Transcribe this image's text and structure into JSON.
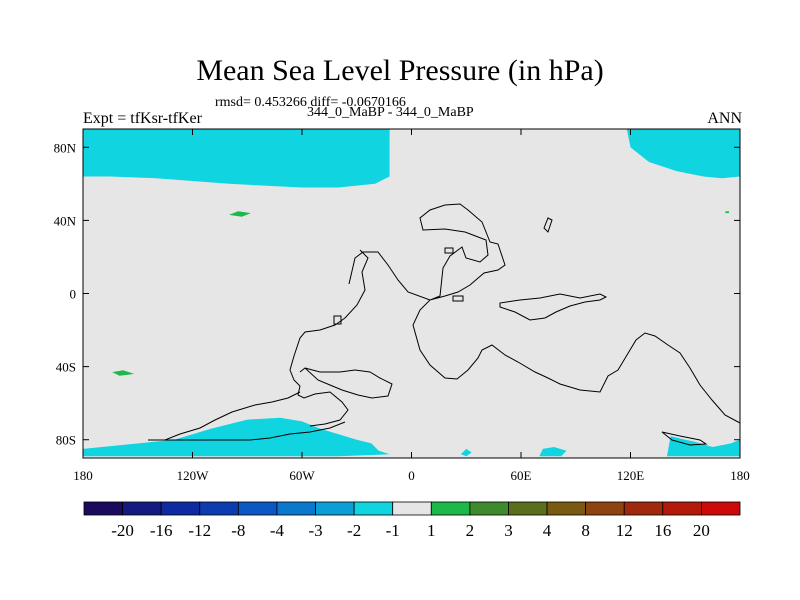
{
  "chart_data": {
    "type": "heatmap",
    "title": "Mean Sea Level Pressure (in hPa)",
    "stats": "rmsd= 0.453266 diff= -0.0670166",
    "subtitle": "344_0_MaBP - 344_0_MaBP",
    "experiment": "Expt = tfKsr-tfKer",
    "season": "ANN",
    "xlim": [
      -180,
      180
    ],
    "ylim": [
      -90,
      90
    ],
    "x_ticks": [
      {
        "value": -180,
        "label": "180"
      },
      {
        "value": -120,
        "label": "120W"
      },
      {
        "value": -60,
        "label": "60W"
      },
      {
        "value": 0,
        "label": "0"
      },
      {
        "value": 60,
        "label": "60E"
      },
      {
        "value": 120,
        "label": "120E"
      },
      {
        "value": 180,
        "label": "180"
      }
    ],
    "y_ticks": [
      {
        "value": 80,
        "label": "80N"
      },
      {
        "value": 40,
        "label": "40N"
      },
      {
        "value": 0,
        "label": "0"
      },
      {
        "value": -40,
        "label": "40S"
      },
      {
        "value": -80,
        "label": "80S"
      }
    ],
    "colorbar": {
      "levels": [
        "-20",
        "-16",
        "-12",
        "-8",
        "-4",
        "-3",
        "-2",
        "-1",
        "1",
        "2",
        "3",
        "4",
        "8",
        "12",
        "16",
        "20"
      ],
      "colors": [
        "#1c0a5e",
        "#141a82",
        "#0d2aa0",
        "#0b3cb0",
        "#0a58c4",
        "#0a78cc",
        "#0b9fd6",
        "#10d4e0",
        "#e6e6e6",
        "#1cb94a",
        "#3f8a2c",
        "#5b6e1c",
        "#7a5a12",
        "#8e4410",
        "#a0280c",
        "#b41a0a",
        "#cc0a0a"
      ]
    },
    "regions": [
      {
        "name": "arctic-negative-west",
        "level_range": "-2 to -1",
        "polygon": [
          [
            -180,
            90
          ],
          [
            -12,
            90
          ],
          [
            -12,
            64
          ],
          [
            -20,
            60
          ],
          [
            -40,
            58
          ],
          [
            -60,
            58
          ],
          [
            -100,
            60
          ],
          [
            -140,
            63
          ],
          [
            -165,
            64
          ],
          [
            -180,
            64
          ]
        ]
      },
      {
        "name": "arctic-negative-east",
        "level_range": "-2 to -1",
        "polygon": [
          [
            118,
            90
          ],
          [
            180,
            90
          ],
          [
            180,
            64
          ],
          [
            170,
            63
          ],
          [
            160,
            64
          ],
          [
            145,
            67
          ],
          [
            130,
            72
          ],
          [
            120,
            80
          ]
        ]
      },
      {
        "name": "pacific-positive-patch",
        "level_range": "1 to 2",
        "polygon": [
          [
            -100,
            43
          ],
          [
            -95,
            45
          ],
          [
            -88,
            44
          ],
          [
            -93,
            42
          ]
        ]
      },
      {
        "name": "south-pacific-positive-patch",
        "level_range": "1 to 2",
        "polygon": [
          [
            -164,
            -43
          ],
          [
            -158,
            -42
          ],
          [
            -152,
            -44
          ],
          [
            -160,
            -45
          ]
        ]
      },
      {
        "name": "east-positive-dot",
        "level_range": "1 to 2",
        "polygon": [
          [
            172,
            45
          ],
          [
            174,
            45
          ],
          [
            174,
            44
          ],
          [
            172,
            44
          ]
        ]
      },
      {
        "name": "southern-ocean-negative",
        "level_range": "-2 to -1",
        "polygon": [
          [
            -180,
            -85
          ],
          [
            -160,
            -83
          ],
          [
            -130,
            -80
          ],
          [
            -110,
            -74
          ],
          [
            -90,
            -69
          ],
          [
            -72,
            -68
          ],
          [
            -60,
            -70
          ],
          [
            -50,
            -74
          ],
          [
            -30,
            -80
          ],
          [
            -22,
            -82
          ],
          [
            -18,
            -86
          ],
          [
            -12,
            -88
          ],
          [
            -40,
            -89
          ],
          [
            -180,
            -89
          ]
        ]
      },
      {
        "name": "south-atlantic-negative",
        "level_range": "-2 to -1",
        "polygon": [
          [
            27,
            -88
          ],
          [
            30,
            -85
          ],
          [
            33,
            -87
          ],
          [
            30,
            -89
          ]
        ]
      },
      {
        "name": "south-indian-negative",
        "level_range": "-2 to -1",
        "polygon": [
          [
            70,
            -89
          ],
          [
            72,
            -85
          ],
          [
            78,
            -84
          ],
          [
            85,
            -86
          ],
          [
            82,
            -89
          ]
        ]
      },
      {
        "name": "antarctic-east-negative",
        "level_range": "-2 to -1",
        "polygon": [
          [
            140,
            -89
          ],
          [
            142,
            -78
          ],
          [
            150,
            -80
          ],
          [
            155,
            -81
          ],
          [
            165,
            -84
          ],
          [
            175,
            -82
          ],
          [
            180,
            -80
          ],
          [
            180,
            -89
          ]
        ]
      }
    ]
  }
}
